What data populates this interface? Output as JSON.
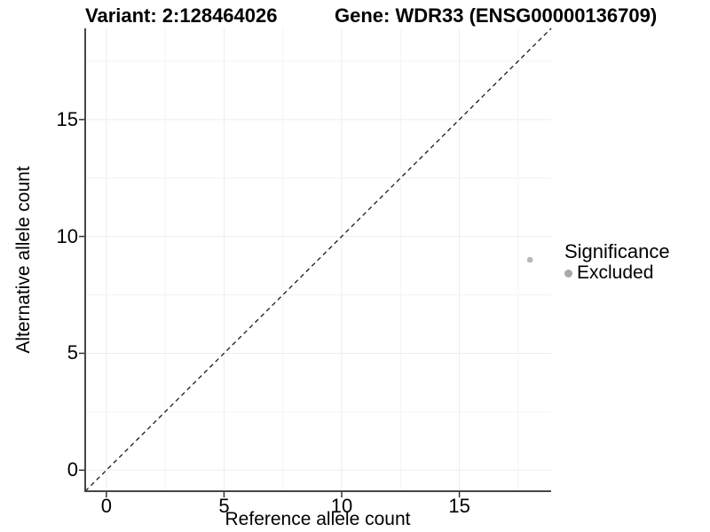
{
  "titles": {
    "variant": "Variant: 2:128464026",
    "gene": "Gene: WDR33 (ENSG00000136709)"
  },
  "chart_data": {
    "type": "scatter",
    "xlabel": "Reference allele count",
    "ylabel": "Alternative allele count",
    "xlim": [
      -0.9,
      18.9
    ],
    "ylim": [
      -0.9,
      18.9
    ],
    "x_major_breaks": [
      0,
      5,
      10,
      15
    ],
    "x_minor_breaks": [
      2.5,
      7.5,
      12.5,
      17.5
    ],
    "y_major_breaks": [
      0,
      5,
      10,
      15
    ],
    "y_minor_breaks": [
      2.5,
      7.5,
      12.5,
      17.5
    ],
    "x_tick_labels": [
      "0",
      "5",
      "10",
      "15"
    ],
    "y_tick_labels": [
      "0",
      "5",
      "10",
      "15"
    ],
    "grid": true,
    "legend_position": "right",
    "identity_line": {
      "style": "dashed",
      "slope": 1,
      "intercept": 0,
      "color": "#1a1a1a"
    },
    "series": [
      {
        "name": "Excluded",
        "color": "#b8b8b8",
        "points": [
          {
            "x": 18,
            "y": 9
          }
        ]
      }
    ]
  },
  "legend": {
    "title": "Significance",
    "items": [
      {
        "label": "Excluded",
        "color": "#a9a9a9"
      }
    ]
  },
  "colors": {
    "background": "#ffffff",
    "axis_line": "#464646",
    "tick_mark": "#333333",
    "grid_major": "#ededed",
    "grid_minor": "#f4f4f4",
    "point": "#b8b8b8",
    "legend_dot": "#a9a9a9",
    "identity_line": "#1a1a1a"
  }
}
